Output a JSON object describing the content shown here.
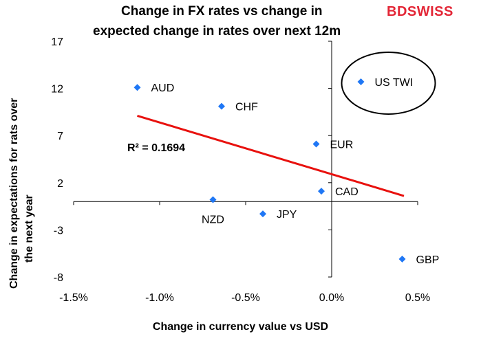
{
  "title_line1": "Change in FX rates vs change in",
  "title_line2": "expected change in rates over next 12m",
  "logo": {
    "part1": "BD",
    "part2": "SWISS",
    "color": "#e32636"
  },
  "chart_data": {
    "type": "scatter",
    "xlabel": "Change in currency value vs USD",
    "ylabel_line1": "Change in expectations for  rats over",
    "ylabel_line2": "the next year",
    "xlim": [
      -1.5,
      0.5
    ],
    "ylim": [
      -8,
      17
    ],
    "x_ticks": [
      -1.5,
      -1.0,
      -0.5,
      0.0,
      0.5
    ],
    "x_tick_labels": [
      "-1.5%",
      "-1.0%",
      "-0.5%",
      "0.0%",
      "0.5%"
    ],
    "y_ticks": [
      17,
      12,
      7,
      2,
      -3,
      -8
    ],
    "y_tick_labels": [
      "17",
      "12",
      "7",
      "2",
      "-3",
      "-8"
    ],
    "point_color": "#1f77f5",
    "trendline_color": "#e8110e",
    "points": [
      {
        "label": "AUD",
        "x": -1.13,
        "y": 12.1
      },
      {
        "label": "CHF",
        "x": -0.64,
        "y": 10.1
      },
      {
        "label": "EUR",
        "x": -0.09,
        "y": 6.1
      },
      {
        "label": "CAD",
        "x": -0.06,
        "y": 1.1
      },
      {
        "label": "NZD",
        "x": -0.69,
        "y": 0.2
      },
      {
        "label": "JPY",
        "x": -0.4,
        "y": -1.3
      },
      {
        "label": "GBP",
        "x": 0.41,
        "y": -6.1
      },
      {
        "label": "US TWI",
        "x": 0.17,
        "y": 12.7
      }
    ],
    "trendline": {
      "x0": -1.13,
      "y0": 9.1,
      "x1": 0.42,
      "y1": 0.6
    },
    "r_squared_label": "R² = 0.1694",
    "highlight_circle_label": "US TWI"
  }
}
